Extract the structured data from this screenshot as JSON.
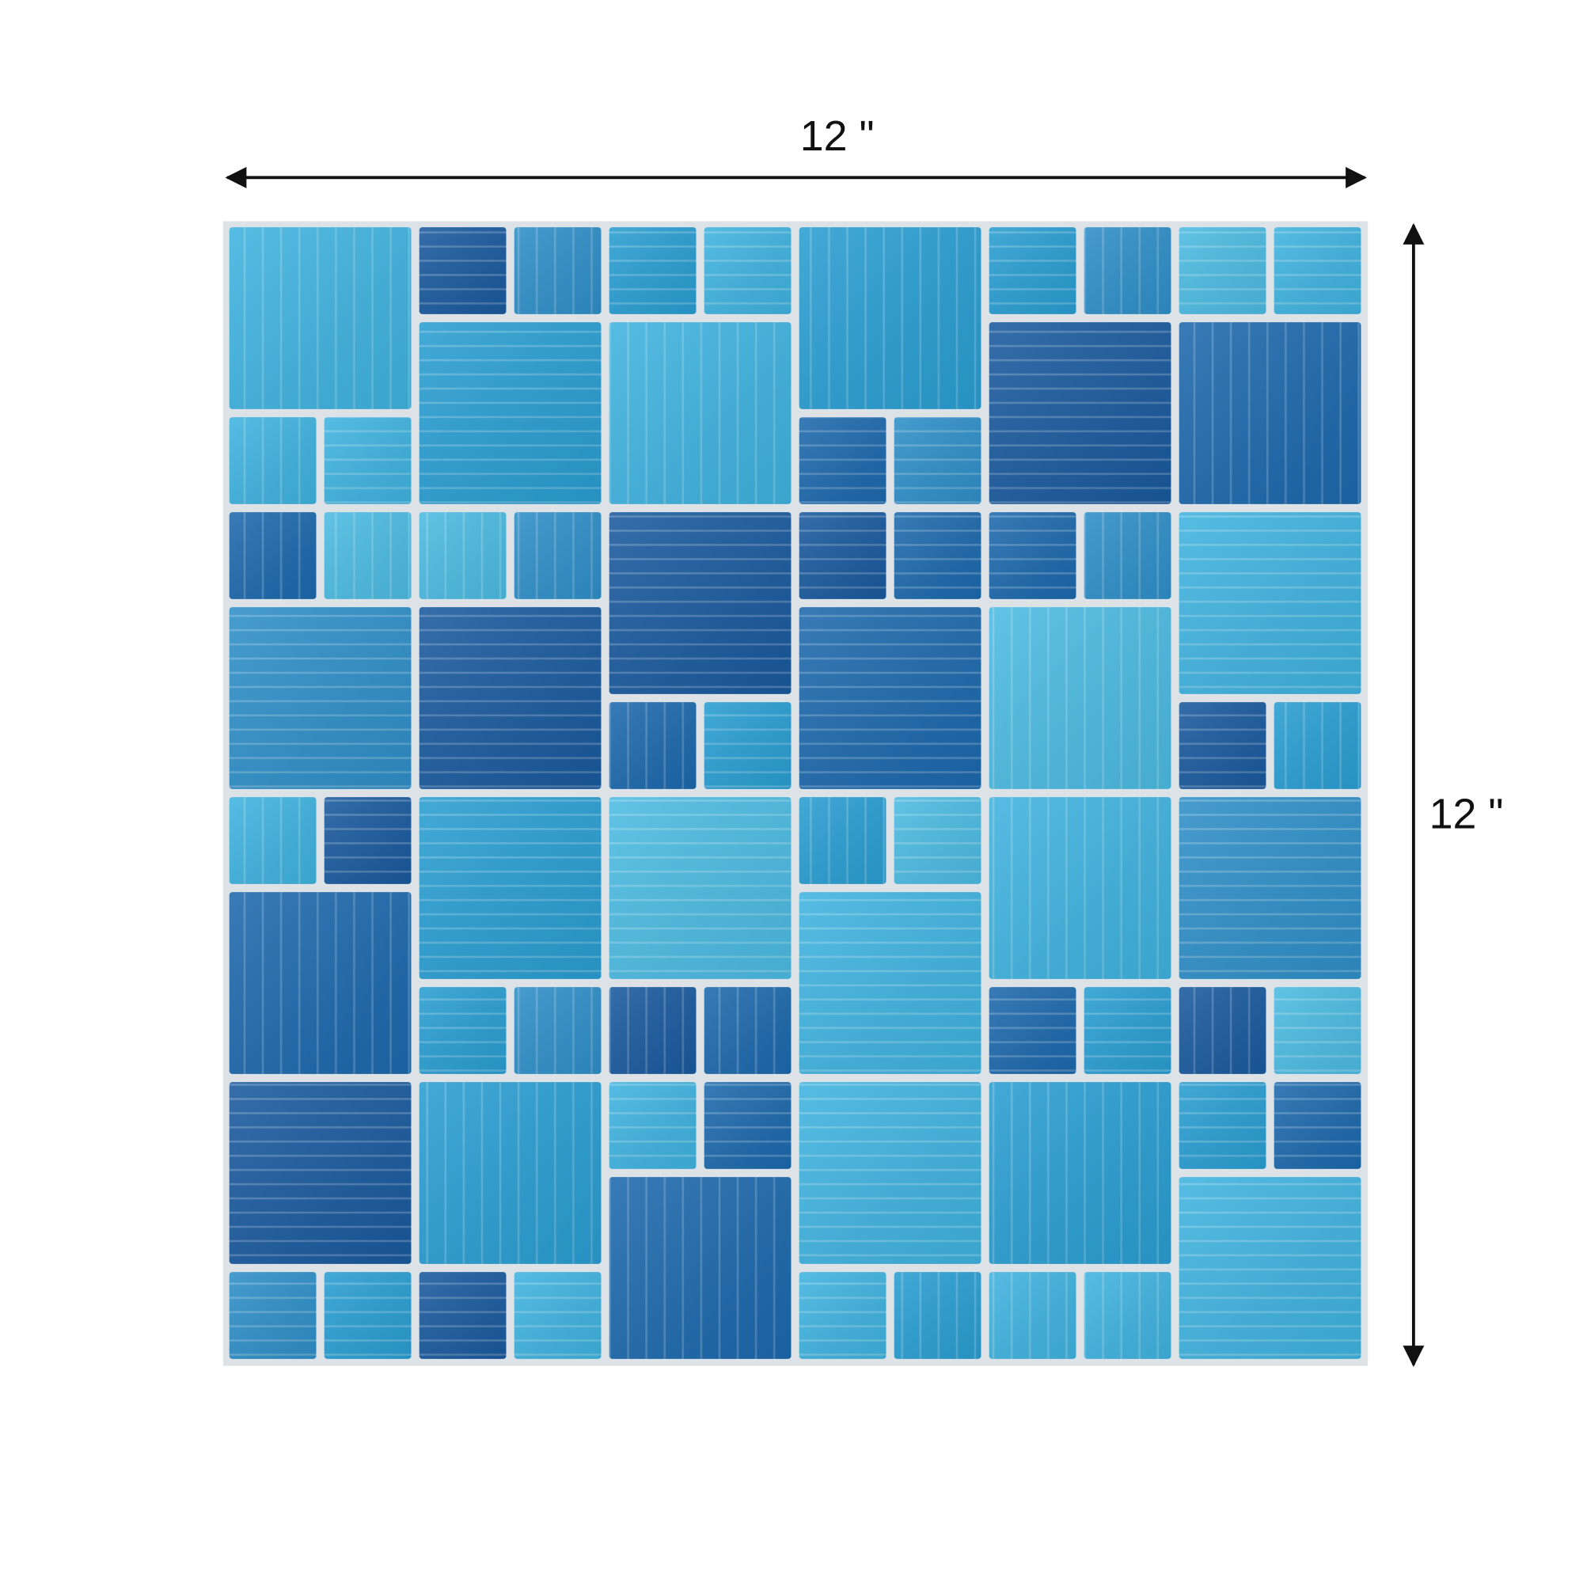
{
  "width_label": "12 \"",
  "height_label": "12 \""
}
